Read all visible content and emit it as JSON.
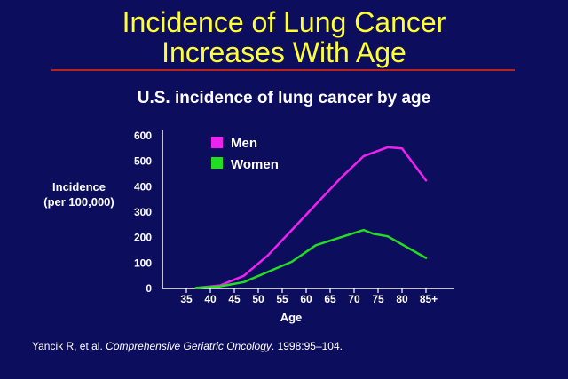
{
  "slide": {
    "title_line1": "Incidence of Lung Cancer",
    "title_line2": "Increases With Age",
    "citation_prefix": "Yancik R, et al. ",
    "citation_journal": "Comprehensive Geriatric Oncology",
    "citation_suffix": ". 1998:95–104."
  },
  "colors": {
    "background": "#0d0d5e",
    "title": "#ffff33",
    "rule": "#b8221f",
    "men": "#ee22ee",
    "women": "#22dd22",
    "text": "#ffffff"
  },
  "chart_data": {
    "type": "line",
    "title": "U.S. incidence of lung cancer by age",
    "xlabel": "Age",
    "ylabel_line1": "Incidence",
    "ylabel_line2": "(per 100,000)",
    "categories": [
      "35",
      "40",
      "45",
      "50",
      "55",
      "60",
      "65",
      "70",
      "75",
      "80",
      "85+"
    ],
    "yticks": [
      "0",
      "100",
      "200",
      "300",
      "400",
      "500",
      "600"
    ],
    "ylim": [
      0,
      600
    ],
    "legend_position": "top-left",
    "series": [
      {
        "name": "Men",
        "color": "#ee22ee",
        "x": [
          37,
          42,
          47,
          52,
          57,
          62,
          67,
          72,
          77,
          80,
          85
        ],
        "y": [
          2,
          12,
          50,
          130,
          230,
          330,
          430,
          520,
          555,
          550,
          425
        ]
      },
      {
        "name": "Women",
        "color": "#22dd22",
        "x": [
          37,
          42,
          47,
          52,
          57,
          62,
          67,
          72,
          74,
          77,
          85
        ],
        "y": [
          2,
          8,
          25,
          65,
          105,
          170,
          200,
          230,
          215,
          205,
          120
        ]
      }
    ]
  }
}
